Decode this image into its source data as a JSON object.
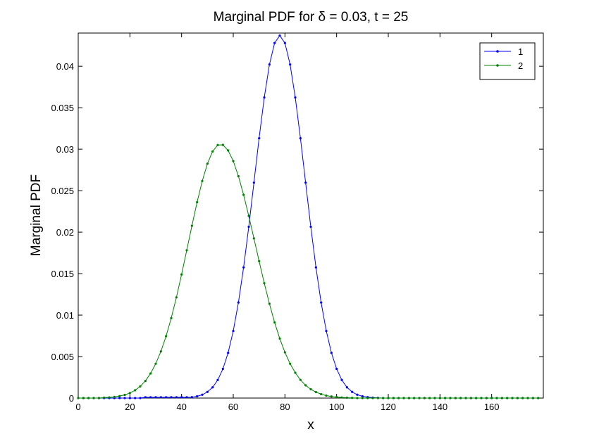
{
  "chart_data": {
    "type": "line",
    "title": "Marginal PDF for δ = 0.03, t = 25",
    "x_label": "x",
    "y_label": "Marginal PDF",
    "x": [
      0,
      2,
      4,
      6,
      8,
      10,
      12,
      14,
      16,
      18,
      20,
      22,
      24,
      26,
      28,
      30,
      32,
      34,
      36,
      38,
      40,
      42,
      44,
      46,
      48,
      50,
      52,
      54,
      56,
      58,
      60,
      62,
      64,
      66,
      68,
      70,
      72,
      74,
      76,
      78,
      80,
      82,
      84,
      86,
      88,
      90,
      92,
      94,
      96,
      98,
      100,
      102,
      104,
      106,
      108,
      110,
      112,
      114,
      116,
      118,
      120,
      122,
      124,
      126,
      128,
      130,
      132,
      134,
      136,
      138,
      140,
      142,
      144,
      146,
      148,
      150,
      152,
      154,
      156,
      158,
      160,
      162,
      164,
      166,
      168,
      170,
      172,
      174,
      176,
      178
    ],
    "series": [
      {
        "name": "1",
        "color": "#0000ff",
        "values": [
          0,
          0,
          0,
          0,
          0,
          0,
          0,
          0,
          0,
          0,
          0,
          0,
          0,
          0.0001,
          0.0001,
          0.0001,
          0.0001,
          0.0001,
          0.0001,
          0.0001,
          0.0001,
          0.0001,
          0.00011,
          0.00021,
          0.0004,
          0.00074,
          0.00129,
          0.00218,
          0.00352,
          0.00545,
          0.00809,
          0.01152,
          0.01575,
          0.02065,
          0.02597,
          0.03132,
          0.03623,
          0.04021,
          0.0428,
          0.0437,
          0.0428,
          0.04021,
          0.03623,
          0.03132,
          0.02597,
          0.02065,
          0.01575,
          0.01152,
          0.00809,
          0.00545,
          0.00352,
          0.00218,
          0.00129,
          0.00074,
          0.0004,
          0.00021,
          0.00011,
          5e-05,
          2e-05,
          0,
          0,
          0,
          0,
          0,
          0,
          0,
          0,
          0,
          0,
          0,
          0,
          0,
          0,
          0,
          0,
          0,
          0,
          0,
          0,
          0,
          0,
          0,
          0,
          0,
          0,
          0,
          0,
          0,
          0,
          0
        ]
      },
      {
        "name": "2",
        "color": "#008000",
        "values": [
          0,
          0,
          0,
          0,
          0,
          5e-05,
          8e-05,
          0.00014,
          0.00024,
          0.00038,
          0.00061,
          0.00094,
          0.00141,
          0.00207,
          0.00297,
          0.00414,
          0.00563,
          0.00746,
          0.00964,
          0.01214,
          0.0149,
          0.01782,
          0.02077,
          0.02361,
          0.02616,
          0.02825,
          0.02973,
          0.0305,
          0.03052,
          0.02985,
          0.02857,
          0.02675,
          0.0245,
          0.02196,
          0.01925,
          0.01651,
          0.01385,
          0.01137,
          0.00912,
          0.00717,
          0.00551,
          0.00414,
          0.00305,
          0.00219,
          0.00154,
          0.00106,
          0.00072,
          0.00047,
          0.0003,
          0.00019,
          0.00012,
          7e-05,
          4e-05,
          2e-05,
          0,
          0,
          0,
          0,
          0,
          0,
          0,
          0,
          0,
          0,
          0,
          0,
          0,
          0,
          0,
          0,
          0,
          0,
          0,
          0,
          0,
          0,
          0,
          0,
          0,
          0,
          0,
          0,
          0,
          0,
          0,
          0,
          0,
          0,
          0,
          0
        ]
      }
    ],
    "xlim": [
      0,
      180
    ],
    "ylim": [
      0,
      0.044
    ],
    "xticks": [
      0,
      20,
      40,
      60,
      80,
      100,
      120,
      140,
      160
    ],
    "yticks": [
      0,
      0.005,
      0.01,
      0.015,
      0.02,
      0.025,
      0.03,
      0.035,
      0.04
    ],
    "legend": "upper right"
  }
}
